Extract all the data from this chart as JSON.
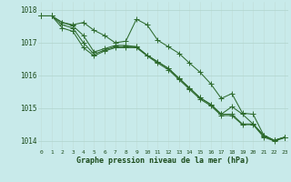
{
  "x": [
    0,
    1,
    2,
    3,
    4,
    5,
    6,
    7,
    8,
    9,
    10,
    11,
    12,
    13,
    14,
    15,
    16,
    17,
    18,
    19,
    20,
    21,
    22,
    23
  ],
  "line1": [
    1017.82,
    1017.82,
    1017.62,
    1017.55,
    1017.62,
    1017.38,
    1017.22,
    1017.0,
    1017.05,
    1017.72,
    1017.55,
    1017.08,
    1016.88,
    1016.68,
    1016.38,
    1016.1,
    1015.75,
    1015.3,
    1015.45,
    1014.85,
    1014.82,
    1014.18,
    1014.02,
    1014.12
  ],
  "line2": [
    1017.82,
    1017.82,
    1017.62,
    1017.52,
    1017.22,
    1016.72,
    1016.82,
    1016.92,
    1016.92,
    1016.88,
    1016.62,
    1016.42,
    1016.22,
    1015.92,
    1015.62,
    1015.32,
    1015.12,
    1014.82,
    1014.82,
    1014.52,
    1014.52,
    1014.18,
    1014.02,
    1014.12
  ],
  "line3": [
    1017.82,
    1017.82,
    1017.55,
    1017.45,
    1017.0,
    1016.65,
    1016.78,
    1016.88,
    1016.88,
    1016.88,
    1016.62,
    1016.42,
    1016.22,
    1015.92,
    1015.62,
    1015.32,
    1015.12,
    1014.82,
    1015.05,
    1014.82,
    1014.52,
    1014.15,
    1014.02,
    1014.12
  ],
  "line4": [
    1017.82,
    1017.82,
    1017.45,
    1017.35,
    1016.85,
    1016.6,
    1016.75,
    1016.85,
    1016.85,
    1016.85,
    1016.6,
    1016.38,
    1016.18,
    1015.88,
    1015.58,
    1015.28,
    1015.08,
    1014.78,
    1014.78,
    1014.5,
    1014.5,
    1014.12,
    1014.0,
    1014.1
  ],
  "line_color": "#2d6a2d",
  "bg_color": "#c8eaea",
  "grid_color_h": "#b0d4cc",
  "grid_color_v": "#c0ddd8",
  "ylim": [
    1013.75,
    1018.25
  ],
  "yticks": [
    1014,
    1015,
    1016,
    1017,
    1018
  ],
  "xlabel": "Graphe pression niveau de la mer (hPa)",
  "tick_color": "#1a4a1a",
  "marker_size": 2.0,
  "linewidth": 0.75
}
